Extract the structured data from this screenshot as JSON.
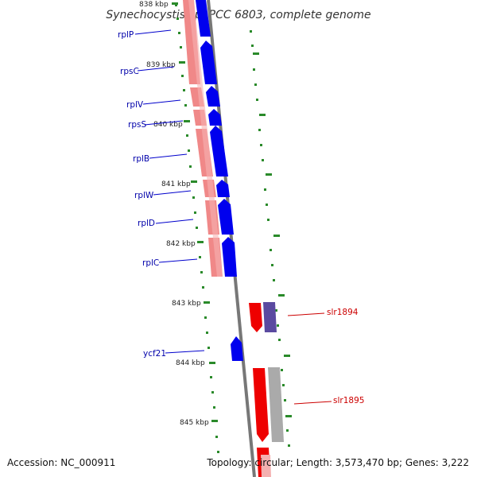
{
  "title": "Synechocystis sp. PCC 6803, complete genome",
  "footer": {
    "accession": "Accession: NC_000911",
    "topology": "Topology: circular; Length: 3,573,470 bp; Genes: 3,222"
  },
  "scale": {
    "ticks": [
      "838 kbp",
      "839 kbp",
      "840 kbp",
      "841 kbp",
      "842 kbp",
      "843 kbp",
      "844 kbp",
      "845 kbp"
    ]
  },
  "genes": [
    {
      "name": "rplP",
      "strand": "left"
    },
    {
      "name": "rpsC",
      "strand": "left"
    },
    {
      "name": "rplV",
      "strand": "left"
    },
    {
      "name": "rpsS",
      "strand": "left"
    },
    {
      "name": "rplB",
      "strand": "left"
    },
    {
      "name": "rplW",
      "strand": "left"
    },
    {
      "name": "rplD",
      "strand": "left"
    },
    {
      "name": "rplC",
      "strand": "left"
    },
    {
      "name": "ycf21",
      "strand": "left"
    },
    {
      "name": "slr1894",
      "strand": "right"
    },
    {
      "name": "slr1895",
      "strand": "right"
    }
  ],
  "colors": {
    "cds_minus": "#0000ee",
    "cds_plus": "#ee0000",
    "rna_minus": "#f08888",
    "rna_plus_purple": "#5a4aa0",
    "rna_plus_grey": "#aaaaaa",
    "backbone": "#777777",
    "tick": "#2a8a2a"
  }
}
